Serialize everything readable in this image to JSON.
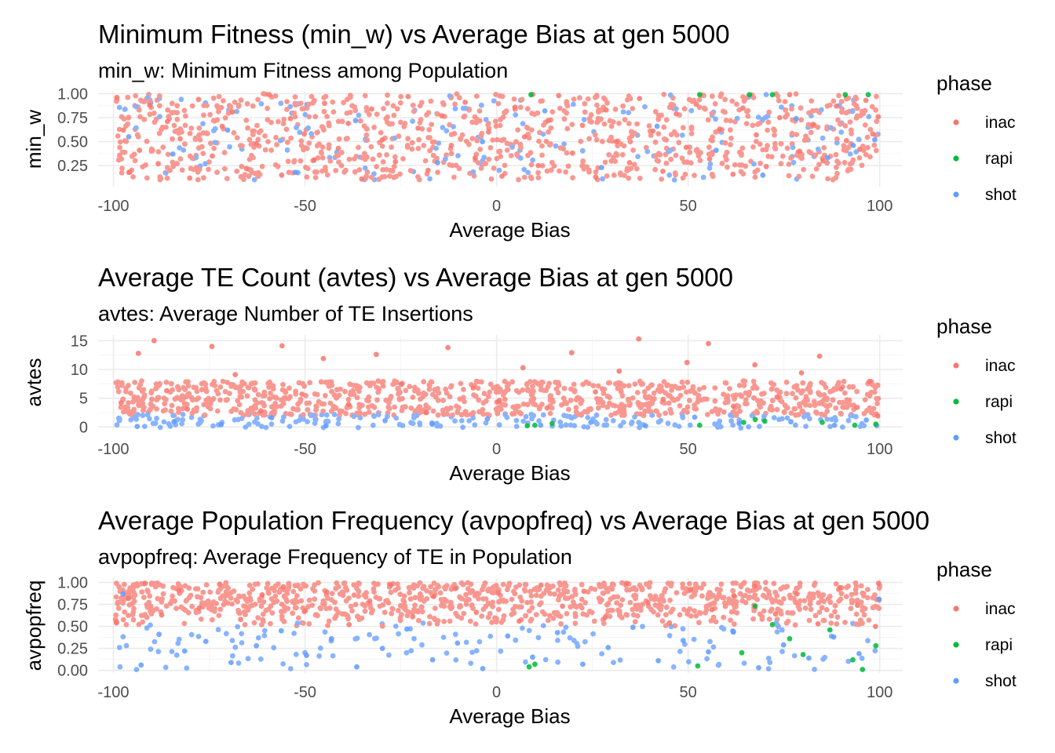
{
  "chart_data": [
    {
      "type": "scatter",
      "title": "Minimum Fitness (min_w) vs Average Bias at gen 5000",
      "subtitle": "min_w: Minimum Fitness among Population",
      "xlabel": "Average Bias",
      "ylabel": "min_w",
      "xlim": [
        -104,
        106
      ],
      "ylim": [
        0.03,
        1.02
      ],
      "xticks": [
        -100,
        -50,
        0,
        50,
        100
      ],
      "xtick_labels": [
        "-100",
        "-50",
        "0",
        "50",
        "100"
      ],
      "yticks": [
        0.25,
        0.5,
        0.75,
        1.0
      ],
      "ytick_labels": [
        "0.25",
        "0.50",
        "0.75",
        "1.00"
      ],
      "grid": true,
      "legend": {
        "title": "phase",
        "position": "right",
        "entries": [
          "inac",
          "rapi",
          "shot"
        ]
      },
      "series": [
        {
          "name": "inac",
          "color": "#F8766D",
          "points": [
            [
              -99.1,
              0.96
            ],
            [
              -97.4,
              0.62
            ],
            [
              -95.8,
              0.18
            ],
            [
              -93.2,
              0.41
            ],
            [
              -90.5,
              0.88
            ],
            [
              -88.3,
              0.27
            ],
            [
              -85.9,
              0.71
            ],
            [
              -82.6,
              0.53
            ],
            [
              -80.1,
              0.12
            ],
            [
              -77.8,
              0.94
            ],
            [
              -74.2,
              0.35
            ],
            [
              -71.6,
              0.66
            ],
            [
              -68.9,
              0.81
            ],
            [
              -65.3,
              0.22
            ],
            [
              -62.7,
              0.48
            ],
            [
              -59.4,
              0.99
            ],
            [
              -56.1,
              0.15
            ],
            [
              -53.8,
              0.74
            ],
            [
              -50.2,
              0.58
            ],
            [
              -47.6,
              0.31
            ],
            [
              -44.9,
              0.9
            ],
            [
              -41.3,
              0.43
            ],
            [
              -38.7,
              0.69
            ],
            [
              -35.2,
              0.11
            ],
            [
              -32.6,
              0.84
            ],
            [
              -29.8,
              0.52
            ],
            [
              -26.4,
              0.29
            ],
            [
              -23.1,
              0.97
            ],
            [
              -20.5,
              0.64
            ],
            [
              -17.9,
              0.2
            ],
            [
              -14.3,
              0.77
            ],
            [
              -11.8,
              0.46
            ],
            [
              -8.2,
              0.91
            ],
            [
              -5.6,
              0.33
            ],
            [
              -2.1,
              0.6
            ],
            [
              1.4,
              0.14
            ],
            [
              4.8,
              0.86
            ],
            [
              7.3,
              0.55
            ],
            [
              10.9,
              0.25
            ],
            [
              13.5,
              0.72
            ],
            [
              16.2,
              0.98
            ],
            [
              19.8,
              0.38
            ],
            [
              22.4,
              0.67
            ],
            [
              25.9,
              0.13
            ],
            [
              28.6,
              0.83
            ],
            [
              31.2,
              0.5
            ],
            [
              34.7,
              0.28
            ],
            [
              37.3,
              0.95
            ],
            [
              40.8,
              0.61
            ],
            [
              43.4,
              0.19
            ],
            [
              46.9,
              0.79
            ],
            [
              49.5,
              0.44
            ],
            [
              52.1,
              0.89
            ],
            [
              55.6,
              0.32
            ],
            [
              58.2,
              0.63
            ],
            [
              61.7,
              0.16
            ],
            [
              64.3,
              0.85
            ],
            [
              67.8,
              0.57
            ],
            [
              70.4,
              0.24
            ],
            [
              73.9,
              0.75
            ],
            [
              76.5,
              0.99
            ],
            [
              79.1,
              0.4
            ],
            [
              82.6,
              0.68
            ],
            [
              85.2,
              0.3
            ],
            [
              88.7,
              0.87
            ],
            [
              91.3,
              0.51
            ],
            [
              94.8,
              0.42
            ],
            [
              96.4,
              0.93
            ],
            [
              98.2,
              0.58
            ],
            [
              99.6,
              0.76
            ]
          ]
        },
        {
          "name": "rapi",
          "color": "#00BA38",
          "points": [
            [
              9.0,
              0.99
            ],
            [
              53.0,
              0.99
            ],
            [
              66.0,
              0.99
            ],
            [
              72.0,
              0.99
            ],
            [
              91.0,
              0.99
            ],
            [
              97.0,
              0.99
            ]
          ]
        },
        {
          "name": "shot",
          "color": "#619CFF",
          "points": [
            [
              -96.0,
              0.55
            ],
            [
              -84.5,
              0.37
            ],
            [
              -70.2,
              0.62
            ],
            [
              -52.5,
              0.18
            ],
            [
              -36.8,
              0.72
            ],
            [
              -15.4,
              0.28
            ],
            [
              -3.7,
              0.5
            ],
            [
              12.6,
              0.82
            ],
            [
              27.4,
              0.23
            ],
            [
              41.9,
              0.66
            ],
            [
              57.3,
              0.41
            ],
            [
              69.5,
              0.15
            ],
            [
              78.2,
              0.74
            ],
            [
              86.4,
              0.33
            ],
            [
              93.1,
              0.46
            ],
            [
              98.7,
              0.52
            ]
          ]
        }
      ]
    },
    {
      "type": "scatter",
      "title": "Average TE Count (avtes) vs Average Bias at gen 5000",
      "subtitle": "avtes: Average Number of TE Insertions",
      "xlabel": "Average Bias",
      "ylabel": "avtes",
      "xlim": [
        -104,
        106
      ],
      "ylim": [
        -0.5,
        16
      ],
      "xticks": [
        -100,
        -50,
        0,
        50,
        100
      ],
      "xtick_labels": [
        "-100",
        "-50",
        "0",
        "50",
        "100"
      ],
      "yticks": [
        0,
        5,
        10,
        15
      ],
      "ytick_labels": [
        "0",
        "5",
        "10",
        "15"
      ],
      "grid": true,
      "legend": {
        "title": "phase",
        "position": "right",
        "entries": [
          "inac",
          "rapi",
          "shot"
        ]
      },
      "series": [
        {
          "name": "inac",
          "color": "#F8766D",
          "points": [
            [
              -98.0,
              4.2
            ],
            [
              -93.5,
              12.8
            ],
            [
              -89.4,
              15.0
            ],
            [
              -86.1,
              6.3
            ],
            [
              -80.7,
              3.1
            ],
            [
              -74.3,
              14.0
            ],
            [
              -68.2,
              9.1
            ],
            [
              -61.5,
              2.8
            ],
            [
              -56.0,
              14.1
            ],
            [
              -50.8,
              5.7
            ],
            [
              -45.2,
              11.9
            ],
            [
              -38.6,
              3.9
            ],
            [
              -31.4,
              12.6
            ],
            [
              -24.9,
              7.4
            ],
            [
              -18.3,
              2.5
            ],
            [
              -12.7,
              13.8
            ],
            [
              -6.1,
              6.8
            ],
            [
              0.5,
              4.4
            ],
            [
              6.9,
              10.3
            ],
            [
              13.2,
              3.3
            ],
            [
              19.6,
              12.9
            ],
            [
              25.8,
              6.1
            ],
            [
              32.0,
              9.7
            ],
            [
              37.1,
              15.3
            ],
            [
              43.5,
              4.8
            ],
            [
              49.7,
              11.2
            ],
            [
              55.3,
              14.5
            ],
            [
              61.8,
              3.6
            ],
            [
              67.4,
              10.8
            ],
            [
              73.2,
              5.2
            ],
            [
              79.6,
              9.4
            ],
            [
              84.3,
              12.3
            ],
            [
              89.9,
              6.6
            ],
            [
              94.1,
              3.4
            ],
            [
              97.3,
              7.9
            ],
            [
              99.5,
              1.9
            ]
          ]
        },
        {
          "name": "rapi",
          "color": "#00BA38",
          "points": [
            [
              8.0,
              0.2
            ],
            [
              10.0,
              0.3
            ],
            [
              14.5,
              0.6
            ],
            [
              53.0,
              0.3
            ],
            [
              64.5,
              0.8
            ],
            [
              67.5,
              1.3
            ],
            [
              70.0,
              1.0
            ],
            [
              85.0,
              0.8
            ],
            [
              93.5,
              0.3
            ],
            [
              99.0,
              0.5
            ]
          ]
        },
        {
          "name": "shot",
          "color": "#619CFF",
          "points": [
            [
              -93.8,
              0.1
            ],
            [
              -84.2,
              0.9
            ],
            [
              -71.9,
              0.4
            ],
            [
              -58.7,
              1.6
            ],
            [
              -44.5,
              0.2
            ],
            [
              -29.1,
              1.1
            ],
            [
              -16.8,
              0.5
            ],
            [
              -2.4,
              1.4
            ],
            [
              11.5,
              0.3
            ],
            [
              24.6,
              0.8
            ],
            [
              38.9,
              0.2
            ],
            [
              51.7,
              1.7
            ],
            [
              63.3,
              0.6
            ],
            [
              76.8,
              0.9
            ],
            [
              88.2,
              0.3
            ],
            [
              96.5,
              1.2
            ]
          ]
        }
      ]
    },
    {
      "type": "scatter",
      "title": "Average Population Frequency (avpopfreq) vs Average Bias at gen 5000",
      "subtitle": "avpopfreq: Average Frequency of TE in Population",
      "xlabel": "Average Bias",
      "ylabel": "avpopfreq",
      "xlim": [
        -104,
        106
      ],
      "ylim": [
        -0.03,
        1.05
      ],
      "xticks": [
        -100,
        -50,
        0,
        50,
        100
      ],
      "xtick_labels": [
        "-100",
        "-50",
        "0",
        "50",
        "100"
      ],
      "yticks": [
        0.0,
        0.25,
        0.5,
        0.75,
        1.0
      ],
      "ytick_labels": [
        "0.00",
        "0.25",
        "0.50",
        "0.75",
        "1.00"
      ],
      "grid": true,
      "legend": {
        "title": "phase",
        "position": "right",
        "entries": [
          "inac",
          "rapi",
          "shot"
        ]
      },
      "series": [
        {
          "name": "inac",
          "color": "#F8766D",
          "points": [
            [
              -99.2,
              0.55
            ],
            [
              -96.1,
              0.82
            ],
            [
              -91.7,
              0.99
            ],
            [
              -87.4,
              0.63
            ],
            [
              -82.9,
              0.91
            ],
            [
              -77.6,
              0.71
            ],
            [
              -72.3,
              0.98
            ],
            [
              -66.8,
              0.58
            ],
            [
              -61.2,
              0.86
            ],
            [
              -55.7,
              0.95
            ],
            [
              -49.9,
              0.68
            ],
            [
              -44.3,
              0.89
            ],
            [
              -38.5,
              0.52
            ],
            [
              -33.1,
              0.79
            ],
            [
              -27.6,
              0.97
            ],
            [
              -21.9,
              0.61
            ],
            [
              -16.4,
              0.84
            ],
            [
              -10.8,
              0.93
            ],
            [
              -5.3,
              0.66
            ],
            [
              0.4,
              0.88
            ],
            [
              5.9,
              0.56
            ],
            [
              11.6,
              0.97
            ],
            [
              17.2,
              0.73
            ],
            [
              22.8,
              0.9
            ],
            [
              28.3,
              0.6
            ],
            [
              33.9,
              0.99
            ],
            [
              39.5,
              0.77
            ],
            [
              45.1,
              0.54
            ],
            [
              50.6,
              0.92
            ],
            [
              56.2,
              0.69
            ],
            [
              61.9,
              0.85
            ],
            [
              67.3,
              0.96
            ],
            [
              72.8,
              0.64
            ],
            [
              78.4,
              0.87
            ],
            [
              83.9,
              0.53
            ],
            [
              89.6,
              0.94
            ],
            [
              94.2,
              0.74
            ],
            [
              98.9,
              0.5
            ],
            [
              99.7,
              0.99
            ]
          ]
        },
        {
          "name": "rapi",
          "color": "#00BA38",
          "points": [
            [
              8.5,
              0.04
            ],
            [
              10.0,
              0.07
            ],
            [
              52.5,
              0.05
            ],
            [
              64.0,
              0.2
            ],
            [
              67.5,
              0.73
            ],
            [
              72.0,
              0.52
            ],
            [
              76.5,
              0.36
            ],
            [
              80.0,
              0.18
            ],
            [
              87.0,
              0.46
            ],
            [
              93.0,
              0.12
            ],
            [
              95.5,
              0.01
            ],
            [
              99.0,
              0.28
            ]
          ]
        },
        {
          "name": "shot",
          "color": "#619CFF",
          "points": [
            [
              -97.5,
              0.87
            ],
            [
              -92.8,
              0.06
            ],
            [
              -88.1,
              0.41
            ],
            [
              -81.4,
              0.22
            ],
            [
              -75.9,
              0.33
            ],
            [
              -69.3,
              0.09
            ],
            [
              -62.7,
              0.28
            ],
            [
              -56.2,
              0.45
            ],
            [
              -49.6,
              0.17
            ],
            [
              -43.1,
              0.36
            ],
            [
              -36.5,
              0.04
            ],
            [
              -29.8,
              0.25
            ],
            [
              -23.4,
              0.47
            ],
            [
              -16.7,
              0.12
            ],
            [
              -10.2,
              0.31
            ],
            [
              -3.6,
              0.02
            ],
            [
              2.9,
              0.39
            ],
            [
              9.4,
              0.15
            ],
            [
              15.9,
              0.43
            ],
            [
              22.5,
              0.07
            ],
            [
              29.1,
              0.26
            ],
            [
              35.6,
              0.49
            ],
            [
              42.2,
              0.11
            ],
            [
              48.7,
              0.34
            ],
            [
              55.3,
              0.21
            ],
            [
              61.8,
              0.44
            ],
            [
              68.4,
              0.03
            ],
            [
              74.9,
              0.29
            ],
            [
              81.5,
              0.14
            ],
            [
              88.0,
              0.38
            ],
            [
              94.6,
              0.19
            ],
            [
              99.8,
              0.81
            ]
          ]
        }
      ]
    }
  ]
}
